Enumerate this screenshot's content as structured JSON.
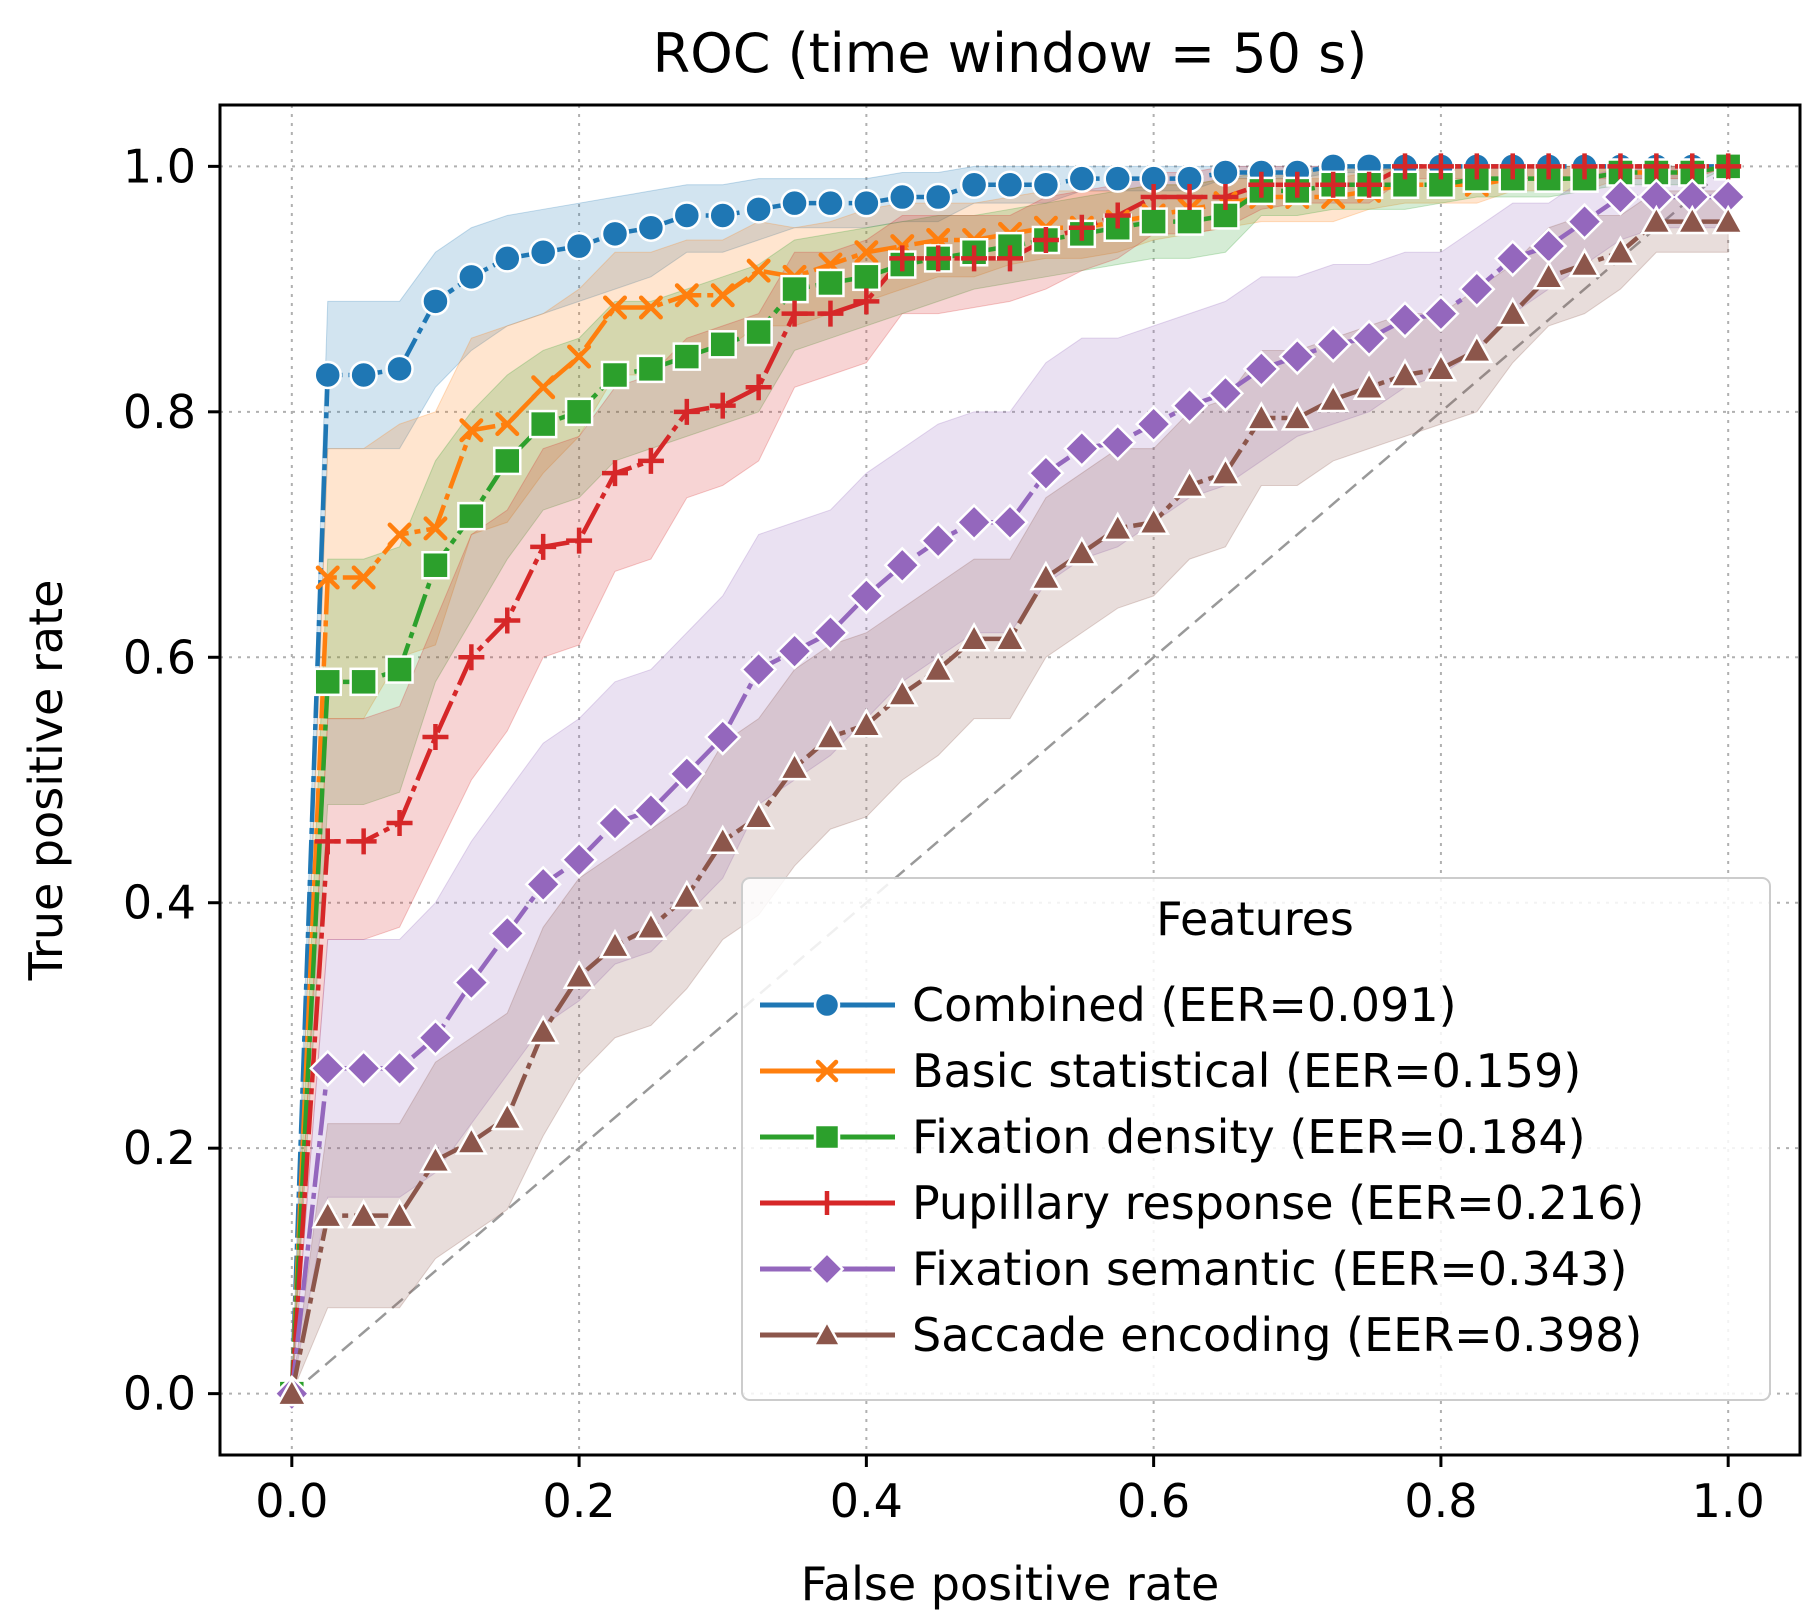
{
  "chart_data": {
    "type": "line",
    "title": "ROC (time window = 50 s)",
    "xlabel": "False positive rate",
    "ylabel": "True positive rate",
    "xlim": [
      -0.05,
      1.05
    ],
    "ylim": [
      -0.05,
      1.05
    ],
    "xticks": [
      "0.0",
      "0.2",
      "0.4",
      "0.6",
      "0.8",
      "1.0"
    ],
    "yticks": [
      "0.0",
      "0.2",
      "0.4",
      "0.6",
      "0.8",
      "1.0"
    ],
    "grid": true,
    "legend": {
      "title": "Features",
      "position": "lower-right"
    },
    "diagonal": "dashed gray chance line",
    "x": [
      0,
      0.025,
      0.05,
      0.075,
      0.1,
      0.125,
      0.15,
      0.175,
      0.2,
      0.225,
      0.25,
      0.275,
      0.3,
      0.325,
      0.35,
      0.375,
      0.4,
      0.425,
      0.45,
      0.475,
      0.5,
      0.525,
      0.55,
      0.575,
      0.6,
      0.625,
      0.65,
      0.675,
      0.7,
      0.725,
      0.75,
      0.775,
      0.8,
      0.825,
      0.85,
      0.875,
      0.9,
      0.925,
      0.95,
      0.975,
      1.0
    ],
    "series": [
      {
        "name": "Combined (EER=0.091)",
        "color": "#1f77b4",
        "marker": "circle",
        "values": [
          0,
          0.83,
          0.83,
          0.835,
          0.89,
          0.91,
          0.925,
          0.93,
          0.935,
          0.945,
          0.95,
          0.96,
          0.96,
          0.965,
          0.97,
          0.97,
          0.97,
          0.975,
          0.975,
          0.985,
          0.985,
          0.985,
          0.99,
          0.99,
          0.99,
          0.99,
          0.995,
          0.995,
          0.995,
          1.0,
          1.0,
          1.0,
          1.0,
          1.0,
          1.0,
          1.0,
          1.0,
          1.0,
          1.0,
          1.0,
          1.0
        ],
        "lower": [
          0,
          0.77,
          0.77,
          0.77,
          0.82,
          0.85,
          0.87,
          0.88,
          0.89,
          0.9,
          0.91,
          0.93,
          0.93,
          0.94,
          0.95,
          0.95,
          0.95,
          0.955,
          0.955,
          0.97,
          0.97,
          0.97,
          0.98,
          0.98,
          0.98,
          0.98,
          0.99,
          0.99,
          0.99,
          0.995,
          0.995,
          1.0,
          1.0,
          1.0,
          1.0,
          1.0,
          1.0,
          1.0,
          1.0,
          1.0,
          1.0
        ],
        "upper": [
          0,
          0.89,
          0.89,
          0.89,
          0.93,
          0.95,
          0.96,
          0.965,
          0.97,
          0.975,
          0.98,
          0.985,
          0.985,
          0.99,
          0.99,
          0.99,
          0.99,
          0.995,
          0.995,
          1.0,
          1.0,
          1.0,
          1.0,
          1.0,
          1.0,
          1.0,
          1.0,
          1.0,
          1.0,
          1.0,
          1.0,
          1.0,
          1.0,
          1.0,
          1.0,
          1.0,
          1.0,
          1.0,
          1.0,
          1.0,
          1.0
        ]
      },
      {
        "name": "Basic statistical (EER=0.159)",
        "color": "#ff7f0e",
        "marker": "x",
        "values": [
          0,
          0.665,
          0.665,
          0.7,
          0.705,
          0.785,
          0.79,
          0.82,
          0.845,
          0.885,
          0.885,
          0.895,
          0.895,
          0.915,
          0.91,
          0.92,
          0.93,
          0.935,
          0.94,
          0.94,
          0.945,
          0.95,
          0.95,
          0.955,
          0.96,
          0.965,
          0.97,
          0.975,
          0.975,
          0.975,
          0.98,
          0.985,
          0.985,
          0.985,
          0.99,
          0.99,
          0.99,
          0.995,
          0.995,
          0.995,
          1.0
        ],
        "lower": [
          0,
          0.55,
          0.55,
          0.6,
          0.61,
          0.7,
          0.71,
          0.75,
          0.78,
          0.83,
          0.83,
          0.85,
          0.85,
          0.87,
          0.87,
          0.88,
          0.89,
          0.9,
          0.91,
          0.91,
          0.92,
          0.925,
          0.925,
          0.93,
          0.94,
          0.945,
          0.95,
          0.955,
          0.955,
          0.955,
          0.965,
          0.97,
          0.97,
          0.97,
          0.98,
          0.98,
          0.98,
          0.99,
          0.99,
          0.99,
          1.0
        ],
        "upper": [
          0,
          0.77,
          0.77,
          0.79,
          0.8,
          0.86,
          0.87,
          0.88,
          0.9,
          0.93,
          0.93,
          0.94,
          0.94,
          0.955,
          0.95,
          0.955,
          0.965,
          0.97,
          0.97,
          0.97,
          0.975,
          0.98,
          0.98,
          0.98,
          0.985,
          0.985,
          0.99,
          0.99,
          0.99,
          0.99,
          0.995,
          1.0,
          1.0,
          1.0,
          1.0,
          1.0,
          1.0,
          1.0,
          1.0,
          1.0,
          1.0
        ]
      },
      {
        "name": "Fixation density (EER=0.184)",
        "color": "#2ca02c",
        "marker": "square",
        "values": [
          0,
          0.58,
          0.58,
          0.59,
          0.675,
          0.715,
          0.76,
          0.79,
          0.8,
          0.83,
          0.835,
          0.845,
          0.855,
          0.865,
          0.9,
          0.905,
          0.91,
          0.92,
          0.925,
          0.93,
          0.935,
          0.94,
          0.945,
          0.95,
          0.955,
          0.955,
          0.96,
          0.98,
          0.98,
          0.985,
          0.985,
          0.985,
          0.985,
          0.99,
          0.99,
          0.99,
          0.99,
          0.995,
          0.995,
          0.995,
          1.0
        ],
        "lower": [
          0,
          0.48,
          0.48,
          0.49,
          0.58,
          0.63,
          0.68,
          0.72,
          0.73,
          0.76,
          0.77,
          0.78,
          0.79,
          0.8,
          0.85,
          0.86,
          0.87,
          0.88,
          0.89,
          0.9,
          0.905,
          0.91,
          0.915,
          0.92,
          0.925,
          0.925,
          0.93,
          0.96,
          0.96,
          0.965,
          0.965,
          0.965,
          0.97,
          0.975,
          0.975,
          0.975,
          0.98,
          0.985,
          0.985,
          0.985,
          1.0
        ],
        "upper": [
          0,
          0.68,
          0.68,
          0.69,
          0.76,
          0.8,
          0.83,
          0.85,
          0.86,
          0.89,
          0.89,
          0.9,
          0.91,
          0.92,
          0.94,
          0.945,
          0.95,
          0.955,
          0.96,
          0.96,
          0.965,
          0.97,
          0.975,
          0.98,
          0.985,
          0.985,
          0.99,
          0.995,
          0.995,
          1.0,
          1.0,
          1.0,
          1.0,
          1.0,
          1.0,
          1.0,
          1.0,
          1.0,
          1.0,
          1.0,
          1.0
        ]
      },
      {
        "name": "Pupillary response (EER=0.216)",
        "color": "#d62728",
        "marker": "plus",
        "values": [
          0,
          0.45,
          0.45,
          0.465,
          0.535,
          0.6,
          0.63,
          0.69,
          0.695,
          0.75,
          0.76,
          0.8,
          0.805,
          0.82,
          0.88,
          0.88,
          0.89,
          0.925,
          0.925,
          0.925,
          0.925,
          0.94,
          0.95,
          0.96,
          0.975,
          0.975,
          0.975,
          0.985,
          0.985,
          0.985,
          0.985,
          1.0,
          1.0,
          1.0,
          1.0,
          1.0,
          1.0,
          1.0,
          1.0,
          1.0,
          1.0
        ],
        "lower": [
          0,
          0.37,
          0.37,
          0.38,
          0.44,
          0.5,
          0.54,
          0.6,
          0.61,
          0.67,
          0.68,
          0.73,
          0.74,
          0.76,
          0.82,
          0.83,
          0.84,
          0.88,
          0.88,
          0.885,
          0.89,
          0.9,
          0.915,
          0.925,
          0.945,
          0.945,
          0.95,
          0.965,
          0.97,
          0.97,
          0.97,
          0.99,
          0.99,
          0.99,
          0.99,
          0.99,
          0.99,
          0.99,
          0.99,
          0.99,
          1.0
        ],
        "upper": [
          0,
          0.55,
          0.55,
          0.56,
          0.63,
          0.7,
          0.72,
          0.77,
          0.78,
          0.82,
          0.83,
          0.86,
          0.87,
          0.88,
          0.93,
          0.93,
          0.94,
          0.96,
          0.96,
          0.96,
          0.96,
          0.975,
          0.98,
          0.985,
          0.995,
          0.995,
          1.0,
          1.0,
          1.0,
          1.0,
          1.0,
          1.0,
          1.0,
          1.0,
          1.0,
          1.0,
          1.0,
          1.0,
          1.0,
          1.0,
          1.0
        ]
      },
      {
        "name": "Fixation semantic (EER=0.343)",
        "color": "#9467bd",
        "marker": "diamond",
        "values": [
          0,
          0.265,
          0.265,
          0.265,
          0.29,
          0.335,
          0.375,
          0.415,
          0.435,
          0.465,
          0.475,
          0.505,
          0.535,
          0.59,
          0.605,
          0.62,
          0.65,
          0.675,
          0.695,
          0.71,
          0.71,
          0.75,
          0.77,
          0.775,
          0.79,
          0.805,
          0.815,
          0.835,
          0.845,
          0.855,
          0.86,
          0.875,
          0.88,
          0.9,
          0.925,
          0.935,
          0.955,
          0.975,
          0.975,
          0.975,
          0.975
        ],
        "lower": [
          0,
          0.16,
          0.16,
          0.16,
          0.18,
          0.22,
          0.26,
          0.3,
          0.32,
          0.35,
          0.36,
          0.39,
          0.42,
          0.48,
          0.5,
          0.52,
          0.55,
          0.58,
          0.6,
          0.62,
          0.62,
          0.66,
          0.68,
          0.69,
          0.71,
          0.73,
          0.74,
          0.76,
          0.78,
          0.79,
          0.8,
          0.82,
          0.83,
          0.85,
          0.88,
          0.9,
          0.92,
          0.94,
          0.95,
          0.95,
          0.95
        ],
        "upper": [
          0,
          0.37,
          0.37,
          0.37,
          0.4,
          0.45,
          0.49,
          0.53,
          0.55,
          0.58,
          0.59,
          0.62,
          0.65,
          0.7,
          0.71,
          0.72,
          0.75,
          0.77,
          0.79,
          0.8,
          0.8,
          0.84,
          0.86,
          0.86,
          0.87,
          0.88,
          0.89,
          0.91,
          0.91,
          0.92,
          0.92,
          0.93,
          0.93,
          0.95,
          0.97,
          0.97,
          0.99,
          1.0,
          1.0,
          1.0,
          1.0
        ]
      },
      {
        "name": "Saccade encoding (EER=0.398)",
        "color": "#8c564b",
        "marker": "triangle",
        "values": [
          0,
          0.145,
          0.145,
          0.145,
          0.19,
          0.205,
          0.225,
          0.295,
          0.34,
          0.365,
          0.38,
          0.405,
          0.45,
          0.47,
          0.51,
          0.535,
          0.545,
          0.57,
          0.59,
          0.615,
          0.615,
          0.665,
          0.685,
          0.705,
          0.71,
          0.74,
          0.75,
          0.795,
          0.795,
          0.81,
          0.82,
          0.83,
          0.835,
          0.85,
          0.88,
          0.91,
          0.92,
          0.93,
          0.955,
          0.955,
          0.955
        ],
        "lower": [
          0,
          0.07,
          0.07,
          0.07,
          0.11,
          0.13,
          0.15,
          0.21,
          0.26,
          0.29,
          0.3,
          0.33,
          0.37,
          0.39,
          0.43,
          0.46,
          0.47,
          0.5,
          0.52,
          0.55,
          0.55,
          0.6,
          0.62,
          0.64,
          0.65,
          0.68,
          0.69,
          0.74,
          0.74,
          0.76,
          0.77,
          0.78,
          0.79,
          0.8,
          0.84,
          0.87,
          0.88,
          0.9,
          0.93,
          0.93,
          0.93
        ],
        "upper": [
          0,
          0.22,
          0.22,
          0.22,
          0.27,
          0.29,
          0.31,
          0.38,
          0.42,
          0.44,
          0.46,
          0.48,
          0.53,
          0.55,
          0.59,
          0.61,
          0.62,
          0.64,
          0.66,
          0.68,
          0.68,
          0.73,
          0.75,
          0.77,
          0.77,
          0.8,
          0.81,
          0.85,
          0.85,
          0.86,
          0.87,
          0.88,
          0.88,
          0.9,
          0.92,
          0.95,
          0.96,
          0.96,
          0.98,
          0.98,
          0.98
        ]
      }
    ]
  }
}
